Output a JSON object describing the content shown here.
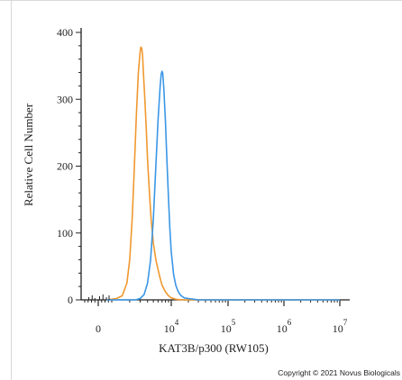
{
  "chart_data": {
    "type": "line",
    "title": "",
    "xlabel": "KAT3B/p300 (RW105)",
    "ylabel": "Relative Cell Number",
    "x_scale": "biexponential",
    "xlim": [
      0,
      10000000
    ],
    "ylim": [
      0,
      400
    ],
    "y_ticks": [
      "0",
      "100",
      "200",
      "300",
      "400"
    ],
    "x_ticks": [
      {
        "value": 0,
        "base": "0",
        "exp": ""
      },
      {
        "value": 10000,
        "base": "10",
        "exp": "4"
      },
      {
        "value": 100000,
        "base": "10",
        "exp": "5"
      },
      {
        "value": 1000000,
        "base": "10",
        "exp": "6"
      },
      {
        "value": 10000000,
        "base": "10",
        "exp": "7"
      }
    ],
    "grid": false,
    "legend": "none",
    "series": [
      {
        "color": "#f0982f",
        "x": [
          600,
          1200,
          1500,
          1800,
          2000,
          2200,
          2400,
          2600,
          2800,
          3000,
          3100,
          3200,
          3300,
          3400,
          3600,
          3800,
          4000,
          4300,
          4600,
          5000,
          5500,
          6000,
          6500,
          7000,
          8000,
          9000,
          10000,
          12000,
          15000,
          20000,
          50000,
          100000,
          1000000,
          10000000
        ],
        "y": [
          0,
          2,
          6,
          25,
          60,
          120,
          200,
          280,
          340,
          372,
          378,
          376,
          365,
          340,
          300,
          255,
          210,
          160,
          120,
          85,
          60,
          45,
          32,
          22,
          12,
          6,
          3,
          1,
          0,
          0,
          0,
          0,
          0,
          0
        ]
      },
      {
        "color": "#3a97e6",
        "x": [
          600,
          2500,
          3000,
          3500,
          4000,
          4500,
          5000,
          5500,
          6000,
          6500,
          6800,
          7000,
          7200,
          7500,
          8000,
          8500,
          9000,
          9500,
          10000,
          11000,
          12000,
          13000,
          14000,
          15000,
          17000,
          20000,
          25000,
          30000,
          40000,
          100000,
          1000000,
          10000000
        ],
        "y": [
          0,
          0,
          2,
          8,
          25,
          60,
          120,
          200,
          270,
          320,
          338,
          342,
          338,
          315,
          265,
          205,
          150,
          105,
          72,
          38,
          22,
          14,
          9,
          6,
          3,
          2,
          1,
          0,
          0,
          0,
          0,
          0
        ]
      }
    ]
  },
  "copyright": "Copyright © 2021 Novus Biologicals"
}
